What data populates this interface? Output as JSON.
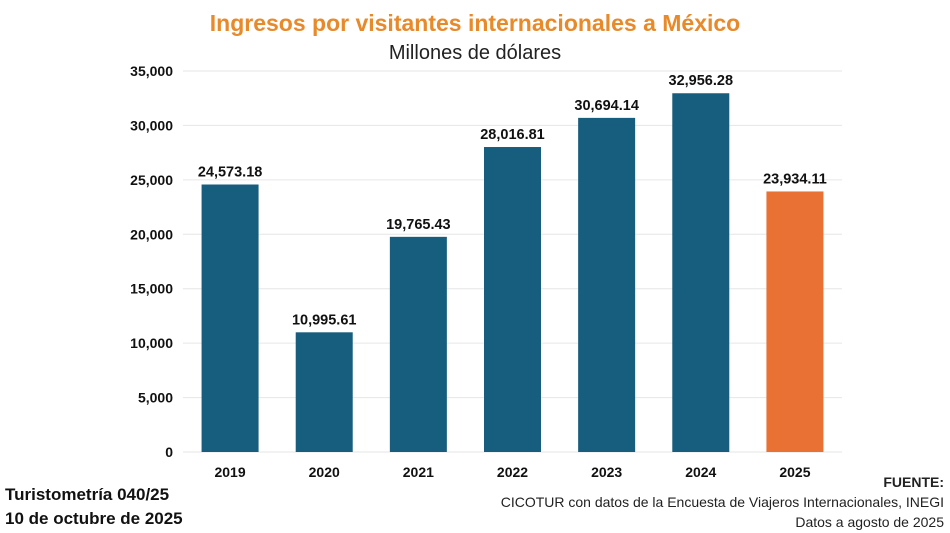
{
  "chart_data": {
    "type": "bar",
    "title": "Ingresos por visitantes internacionales a México",
    "subtitle": "Millones de dólares",
    "categories": [
      "2019",
      "2020",
      "2021",
      "2022",
      "2023",
      "2024",
      "2025"
    ],
    "values": [
      24573.18,
      10995.61,
      19765.43,
      28016.81,
      30694.14,
      32956.28,
      23934.11
    ],
    "value_labels": [
      "24,573.18",
      "10,995.61",
      "19,765.43",
      "28,016.81",
      "30,694.14",
      "32,956.28",
      "23,934.11"
    ],
    "ylim": [
      0,
      35000
    ],
    "yticks": [
      0,
      5000,
      10000,
      15000,
      20000,
      25000,
      30000,
      35000
    ],
    "ytick_labels": [
      "0",
      "5,000",
      "10,000",
      "15,000",
      "20,000",
      "25,000",
      "30,000",
      "35,000"
    ],
    "grid": true,
    "colors": {
      "default": "#175e7e",
      "highlight": "#e87133",
      "grid": "#e6e6e6",
      "title": "#e8892a"
    },
    "highlight_index": 6
  },
  "footer": {
    "left_line1": "Turistometría 040/25",
    "left_line2": "10 de octubre de 2025",
    "source_label": "FUENTE:",
    "source_line1": "CICOTUR con datos de la Encuesta de Viajeros Internacionales, INEGI",
    "source_line2": "Datos a agosto de 2025"
  }
}
